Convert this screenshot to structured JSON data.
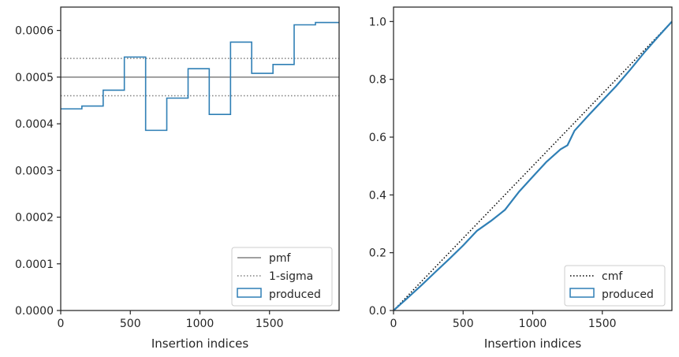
{
  "chart_data": [
    {
      "type": "step",
      "xlabel": "Insertion indices",
      "ylabel": "",
      "xlim": [
        0,
        2000
      ],
      "ylim": [
        0,
        0.00065
      ],
      "xticks": [
        0,
        500,
        1000,
        1500
      ],
      "xtick_labels": [
        "0",
        "500",
        "1000",
        "1500"
      ],
      "yticks": [
        0,
        0.0001,
        0.0002,
        0.0003,
        0.0004,
        0.0005,
        0.0006
      ],
      "ytick_labels": [
        "0.0000",
        "0.0001",
        "0.0002",
        "0.0003",
        "0.0004",
        "0.0005",
        "0.0006"
      ],
      "grid": false,
      "legend_position": "lower-right",
      "series": [
        {
          "name": "pmf",
          "style": "solid",
          "color": "#808080",
          "values": [
            0.0005
          ]
        },
        {
          "name": "1-sigma",
          "style": "dotted",
          "color": "#808080",
          "values": [
            0.00054,
            0.00046
          ]
        },
        {
          "name": "produced",
          "style": "step",
          "color": "#2f7fb5",
          "bin_edges": [
            0,
            152,
            305,
            457,
            610,
            762,
            915,
            1067,
            1220,
            1372,
            1525,
            1677,
            1830,
            2000
          ],
          "values": [
            0.000432,
            0.000438,
            0.000472,
            0.000543,
            0.000386,
            0.000455,
            0.000518,
            0.00042,
            0.000575,
            0.000508,
            0.000527,
            0.000612,
            0.000617
          ]
        }
      ]
    },
    {
      "type": "line",
      "xlabel": "Insertion indices",
      "ylabel": "",
      "xlim": [
        0,
        2000
      ],
      "ylim": [
        0,
        1.05
      ],
      "xticks": [
        0,
        500,
        1000,
        1500
      ],
      "xtick_labels": [
        "0",
        "500",
        "1000",
        "1500"
      ],
      "yticks": [
        0,
        0.2,
        0.4,
        0.6,
        0.8,
        1.0
      ],
      "ytick_labels": [
        "0.0",
        "0.2",
        "0.4",
        "0.6",
        "0.8",
        "1.0"
      ],
      "grid": false,
      "legend_position": "lower-right",
      "series": [
        {
          "name": "cmf",
          "style": "dotted",
          "color": "#000000",
          "x": [
            0,
            2000
          ],
          "y": [
            0,
            1.0
          ]
        },
        {
          "name": "produced",
          "style": "step",
          "color": "#2f7fb5",
          "x": [
            0,
            100,
            200,
            300,
            400,
            500,
            600,
            700,
            800,
            900,
            1000,
            1100,
            1200,
            1250,
            1300,
            1400,
            1500,
            1600,
            1700,
            1800,
            1900,
            2000
          ],
          "y": [
            0,
            0.043,
            0.087,
            0.133,
            0.178,
            0.225,
            0.276,
            0.31,
            0.348,
            0.41,
            0.463,
            0.515,
            0.558,
            0.572,
            0.622,
            0.675,
            0.726,
            0.777,
            0.833,
            0.892,
            0.947,
            1.0
          ]
        }
      ]
    }
  ]
}
